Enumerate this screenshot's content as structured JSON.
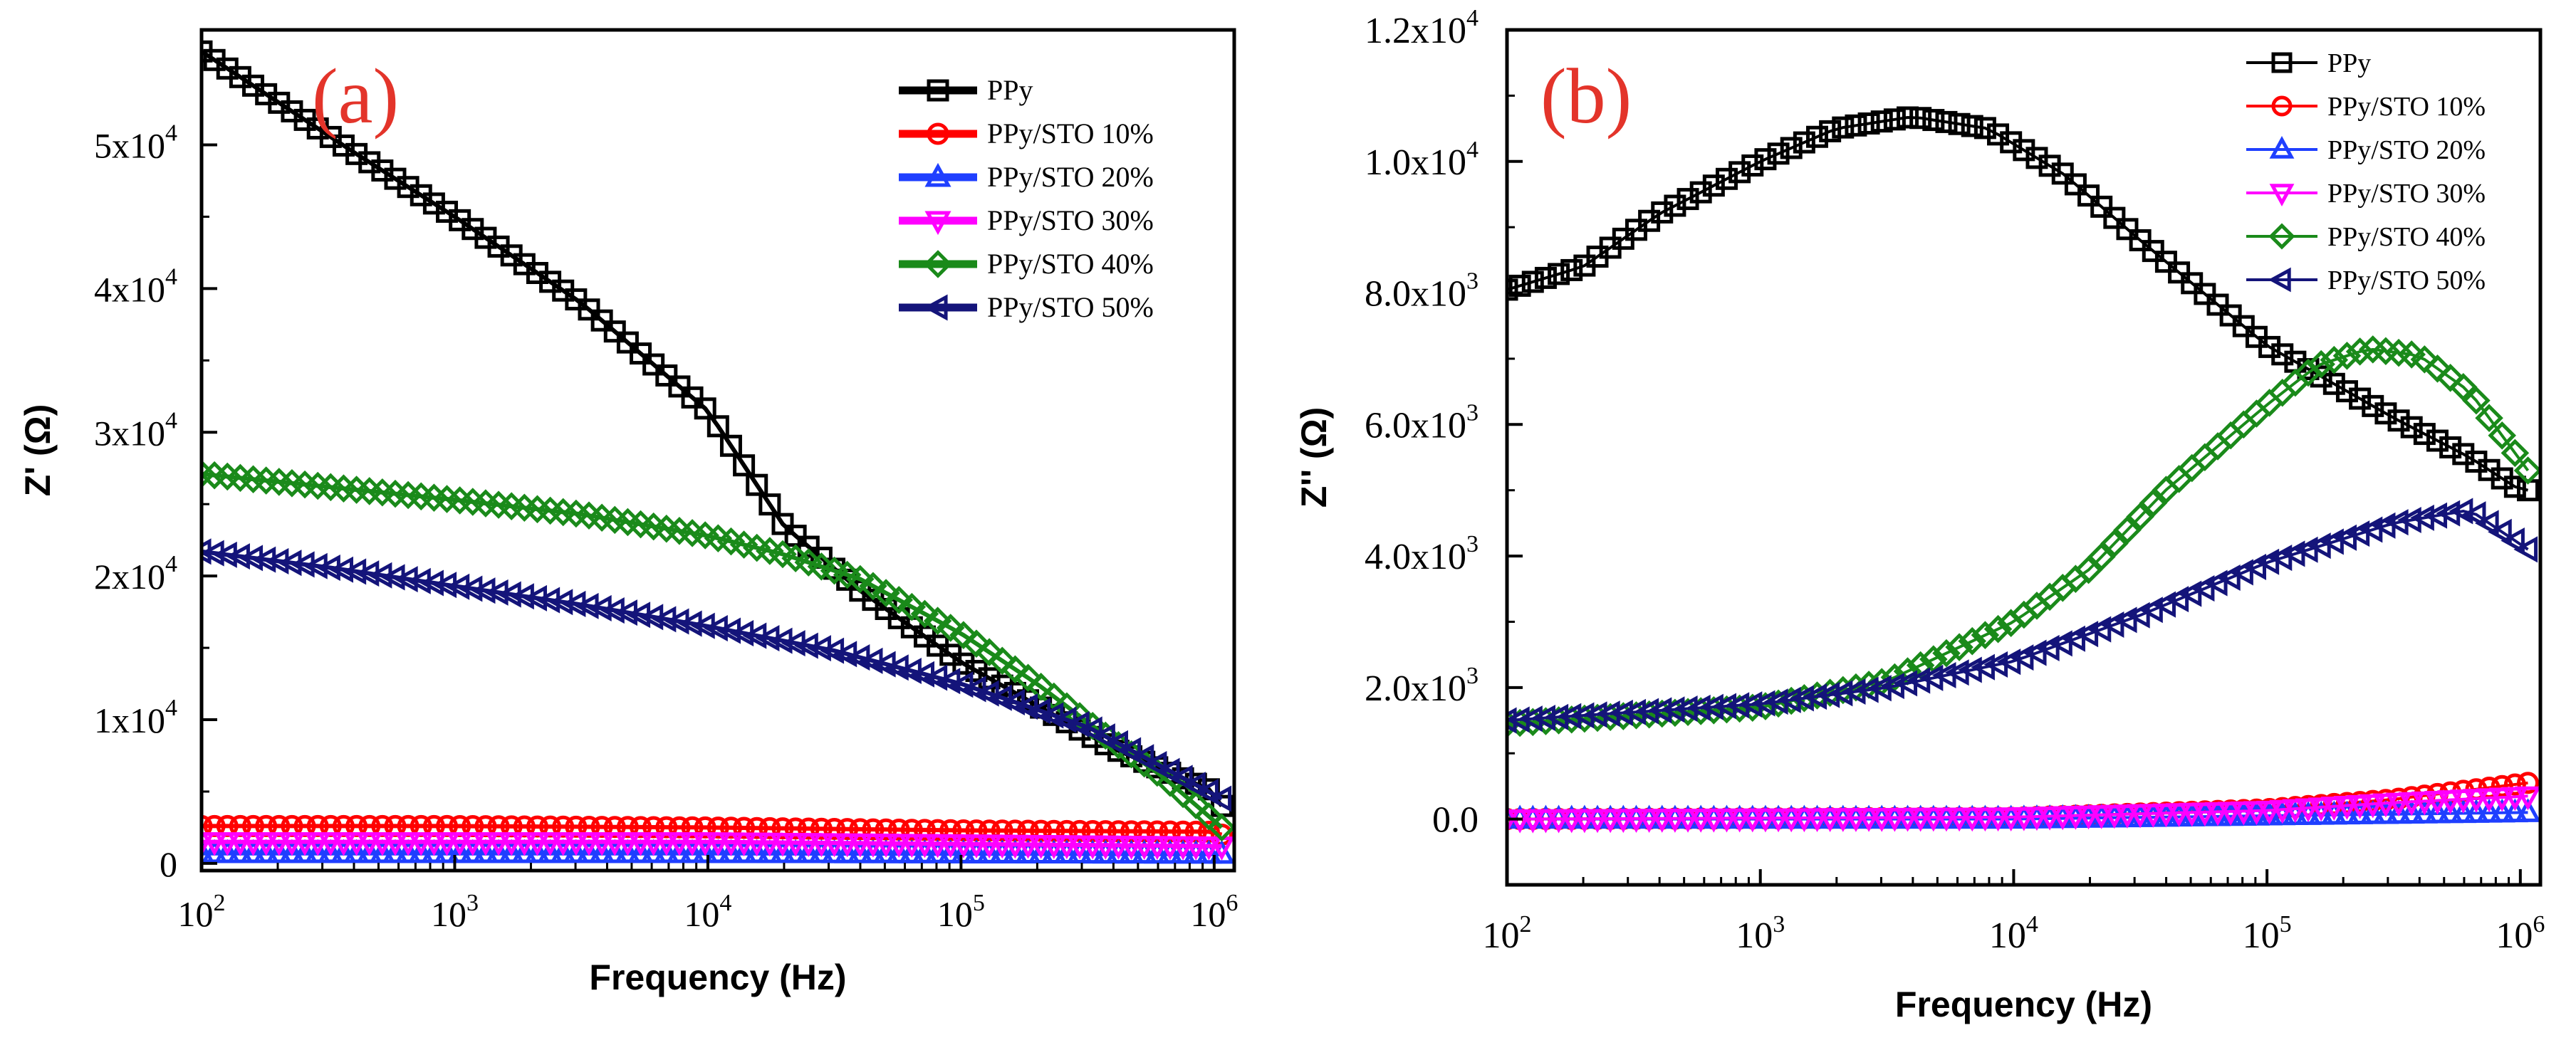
{
  "chart_data": [
    {
      "type": "line",
      "panel_label": "(a)",
      "xlabel": "Frequency (Hz)",
      "ylabel": "Z' (Ω)",
      "xscale": "log",
      "xlim": [
        100,
        1200000
      ],
      "ylim": [
        -500,
        58000
      ],
      "x_ticks": [
        {
          "value": 100,
          "base": "10",
          "exp": "2"
        },
        {
          "value": 1000,
          "base": "10",
          "exp": "3"
        },
        {
          "value": 10000,
          "base": "10",
          "exp": "4"
        },
        {
          "value": 100000,
          "base": "10",
          "exp": "5"
        },
        {
          "value": 1000000,
          "base": "10",
          "exp": "6"
        }
      ],
      "y_ticks": [
        {
          "value": 0,
          "mant": "0",
          "exp": ""
        },
        {
          "value": 10000,
          "mant": "1x10",
          "exp": "4"
        },
        {
          "value": 20000,
          "mant": "2x10",
          "exp": "4"
        },
        {
          "value": 30000,
          "mant": "3x10",
          "exp": "4"
        },
        {
          "value": 40000,
          "mant": "4x10",
          "exp": "4"
        },
        {
          "value": 50000,
          "mant": "5x10",
          "exp": "4"
        }
      ],
      "legend_position": "top-right",
      "series": [
        {
          "name": "PPy",
          "color": "#000000",
          "marker": "square",
          "points": [
            [
              2.0,
              56500
            ],
            [
              2.3,
              53000
            ],
            [
              2.6,
              49500
            ],
            [
              3.0,
              45000
            ],
            [
              3.5,
              39000
            ],
            [
              4.0,
              31500
            ],
            [
              4.3,
              23500
            ],
            [
              4.6,
              19000
            ],
            [
              5.0,
              14000
            ],
            [
              5.4,
              10000
            ],
            [
              5.6,
              8000
            ],
            [
              6.0,
              5000
            ],
            [
              6.03,
              4000
            ]
          ]
        },
        {
          "name": "PPy/STO 10%",
          "color": "#ff0000",
          "marker": "circle",
          "points": [
            [
              2.0,
              2600
            ],
            [
              3.0,
              2600
            ],
            [
              4.0,
              2500
            ],
            [
              5.0,
              2300
            ],
            [
              6.0,
              2200
            ],
            [
              6.03,
              2000
            ]
          ]
        },
        {
          "name": "PPy/STO 20%",
          "color": "#1f3fff",
          "marker": "triangle-up",
          "points": [
            [
              2.0,
              700
            ],
            [
              4.0,
              700
            ],
            [
              6.03,
              650
            ]
          ]
        },
        {
          "name": "PPy/STO 30%",
          "color": "#ff00ff",
          "marker": "triangle-down",
          "points": [
            [
              2.0,
              1500
            ],
            [
              4.0,
              1500
            ],
            [
              6.03,
              1200
            ]
          ]
        },
        {
          "name": "PPy/STO 40%",
          "color": "#1a8a1a",
          "marker": "diamond",
          "points": [
            [
              2.0,
              27100
            ],
            [
              2.5,
              26200
            ],
            [
              3.0,
              25300
            ],
            [
              3.5,
              24300
            ],
            [
              4.0,
              22800
            ],
            [
              4.3,
              21500
            ],
            [
              4.6,
              19800
            ],
            [
              5.0,
              16000
            ],
            [
              5.3,
              12500
            ],
            [
              5.6,
              8500
            ],
            [
              5.8,
              6000
            ],
            [
              6.03,
              2500
            ]
          ]
        },
        {
          "name": "PPy/STO 50%",
          "color": "#14147a",
          "marker": "triangle-left",
          "points": [
            [
              2.0,
              21700
            ],
            [
              2.5,
              20600
            ],
            [
              3.0,
              19300
            ],
            [
              3.5,
              18000
            ],
            [
              4.0,
              16500
            ],
            [
              4.5,
              14800
            ],
            [
              5.0,
              12500
            ],
            [
              5.5,
              9500
            ],
            [
              6.03,
              4500
            ]
          ]
        }
      ]
    },
    {
      "type": "line",
      "panel_label": "(b)",
      "xlabel": "Frequency (Hz)",
      "ylabel": "Z'' (Ω)",
      "xscale": "log",
      "xlim": [
        100,
        1200000
      ],
      "ylim": [
        -1000,
        12000
      ],
      "x_ticks": [
        {
          "value": 100,
          "base": "10",
          "exp": "2"
        },
        {
          "value": 1000,
          "base": "10",
          "exp": "3"
        },
        {
          "value": 10000,
          "base": "10",
          "exp": "4"
        },
        {
          "value": 100000,
          "base": "10",
          "exp": "5"
        },
        {
          "value": 1000000,
          "base": "10",
          "exp": "6"
        }
      ],
      "y_ticks": [
        {
          "value": 0,
          "mant": "0.0",
          "exp": ""
        },
        {
          "value": 2000,
          "mant": "2.0x10",
          "exp": "3"
        },
        {
          "value": 4000,
          "mant": "4.0x10",
          "exp": "3"
        },
        {
          "value": 6000,
          "mant": "6.0x10",
          "exp": "3"
        },
        {
          "value": 8000,
          "mant": "8.0x10",
          "exp": "3"
        },
        {
          "value": 10000,
          "mant": "1.0x10",
          "exp": "4"
        },
        {
          "value": 12000,
          "mant": "1.2x10",
          "exp": "4"
        }
      ],
      "legend_position": "top-right",
      "series": [
        {
          "name": "PPy",
          "color": "#000000",
          "marker": "square",
          "points": [
            [
              2.0,
              8050
            ],
            [
              2.3,
              8400
            ],
            [
              2.6,
              9200
            ],
            [
              3.0,
              10000
            ],
            [
              3.3,
              10500
            ],
            [
              3.6,
              10680
            ],
            [
              3.9,
              10500
            ],
            [
              4.2,
              9800
            ],
            [
              4.5,
              8800
            ],
            [
              5.0,
              7200
            ],
            [
              5.5,
              6100
            ],
            [
              5.8,
              5500
            ],
            [
              6.0,
              5000
            ],
            [
              6.03,
              5000
            ]
          ]
        },
        {
          "name": "PPy/STO 10%",
          "color": "#ff0000",
          "marker": "circle",
          "points": [
            [
              2.0,
              0
            ],
            [
              4.0,
              20
            ],
            [
              5.0,
              150
            ],
            [
              5.5,
              300
            ],
            [
              6.03,
              550
            ]
          ]
        },
        {
          "name": "PPy/STO 20%",
          "color": "#1f3fff",
          "marker": "triangle-up",
          "points": [
            [
              2.0,
              0
            ],
            [
              4.0,
              0
            ],
            [
              5.0,
              50
            ],
            [
              6.03,
              100
            ]
          ]
        },
        {
          "name": "PPy/STO 30%",
          "color": "#ff00ff",
          "marker": "triangle-down",
          "points": [
            [
              2.0,
              0
            ],
            [
              4.0,
              30
            ],
            [
              5.0,
              130
            ],
            [
              5.5,
              250
            ],
            [
              6.03,
              350
            ]
          ]
        },
        {
          "name": "PPy/STO 40%",
          "color": "#1a8a1a",
          "marker": "diamond",
          "points": [
            [
              2.0,
              1450
            ],
            [
              3.0,
              1700
            ],
            [
              3.5,
              2100
            ],
            [
              4.0,
              3000
            ],
            [
              4.3,
              3800
            ],
            [
              4.6,
              5000
            ],
            [
              5.0,
              6300
            ],
            [
              5.2,
              6900
            ],
            [
              5.4,
              7150
            ],
            [
              5.6,
              7050
            ],
            [
              5.8,
              6500
            ],
            [
              6.03,
              5300
            ]
          ]
        },
        {
          "name": "PPy/STO 50%",
          "color": "#14147a",
          "marker": "triangle-left",
          "points": [
            [
              2.0,
              1500
            ],
            [
              3.0,
              1750
            ],
            [
              3.5,
              2000
            ],
            [
              4.0,
              2400
            ],
            [
              4.5,
              3100
            ],
            [
              5.0,
              3900
            ],
            [
              5.5,
              4500
            ],
            [
              5.8,
              4700
            ],
            [
              6.03,
              4100
            ]
          ]
        }
      ]
    }
  ]
}
